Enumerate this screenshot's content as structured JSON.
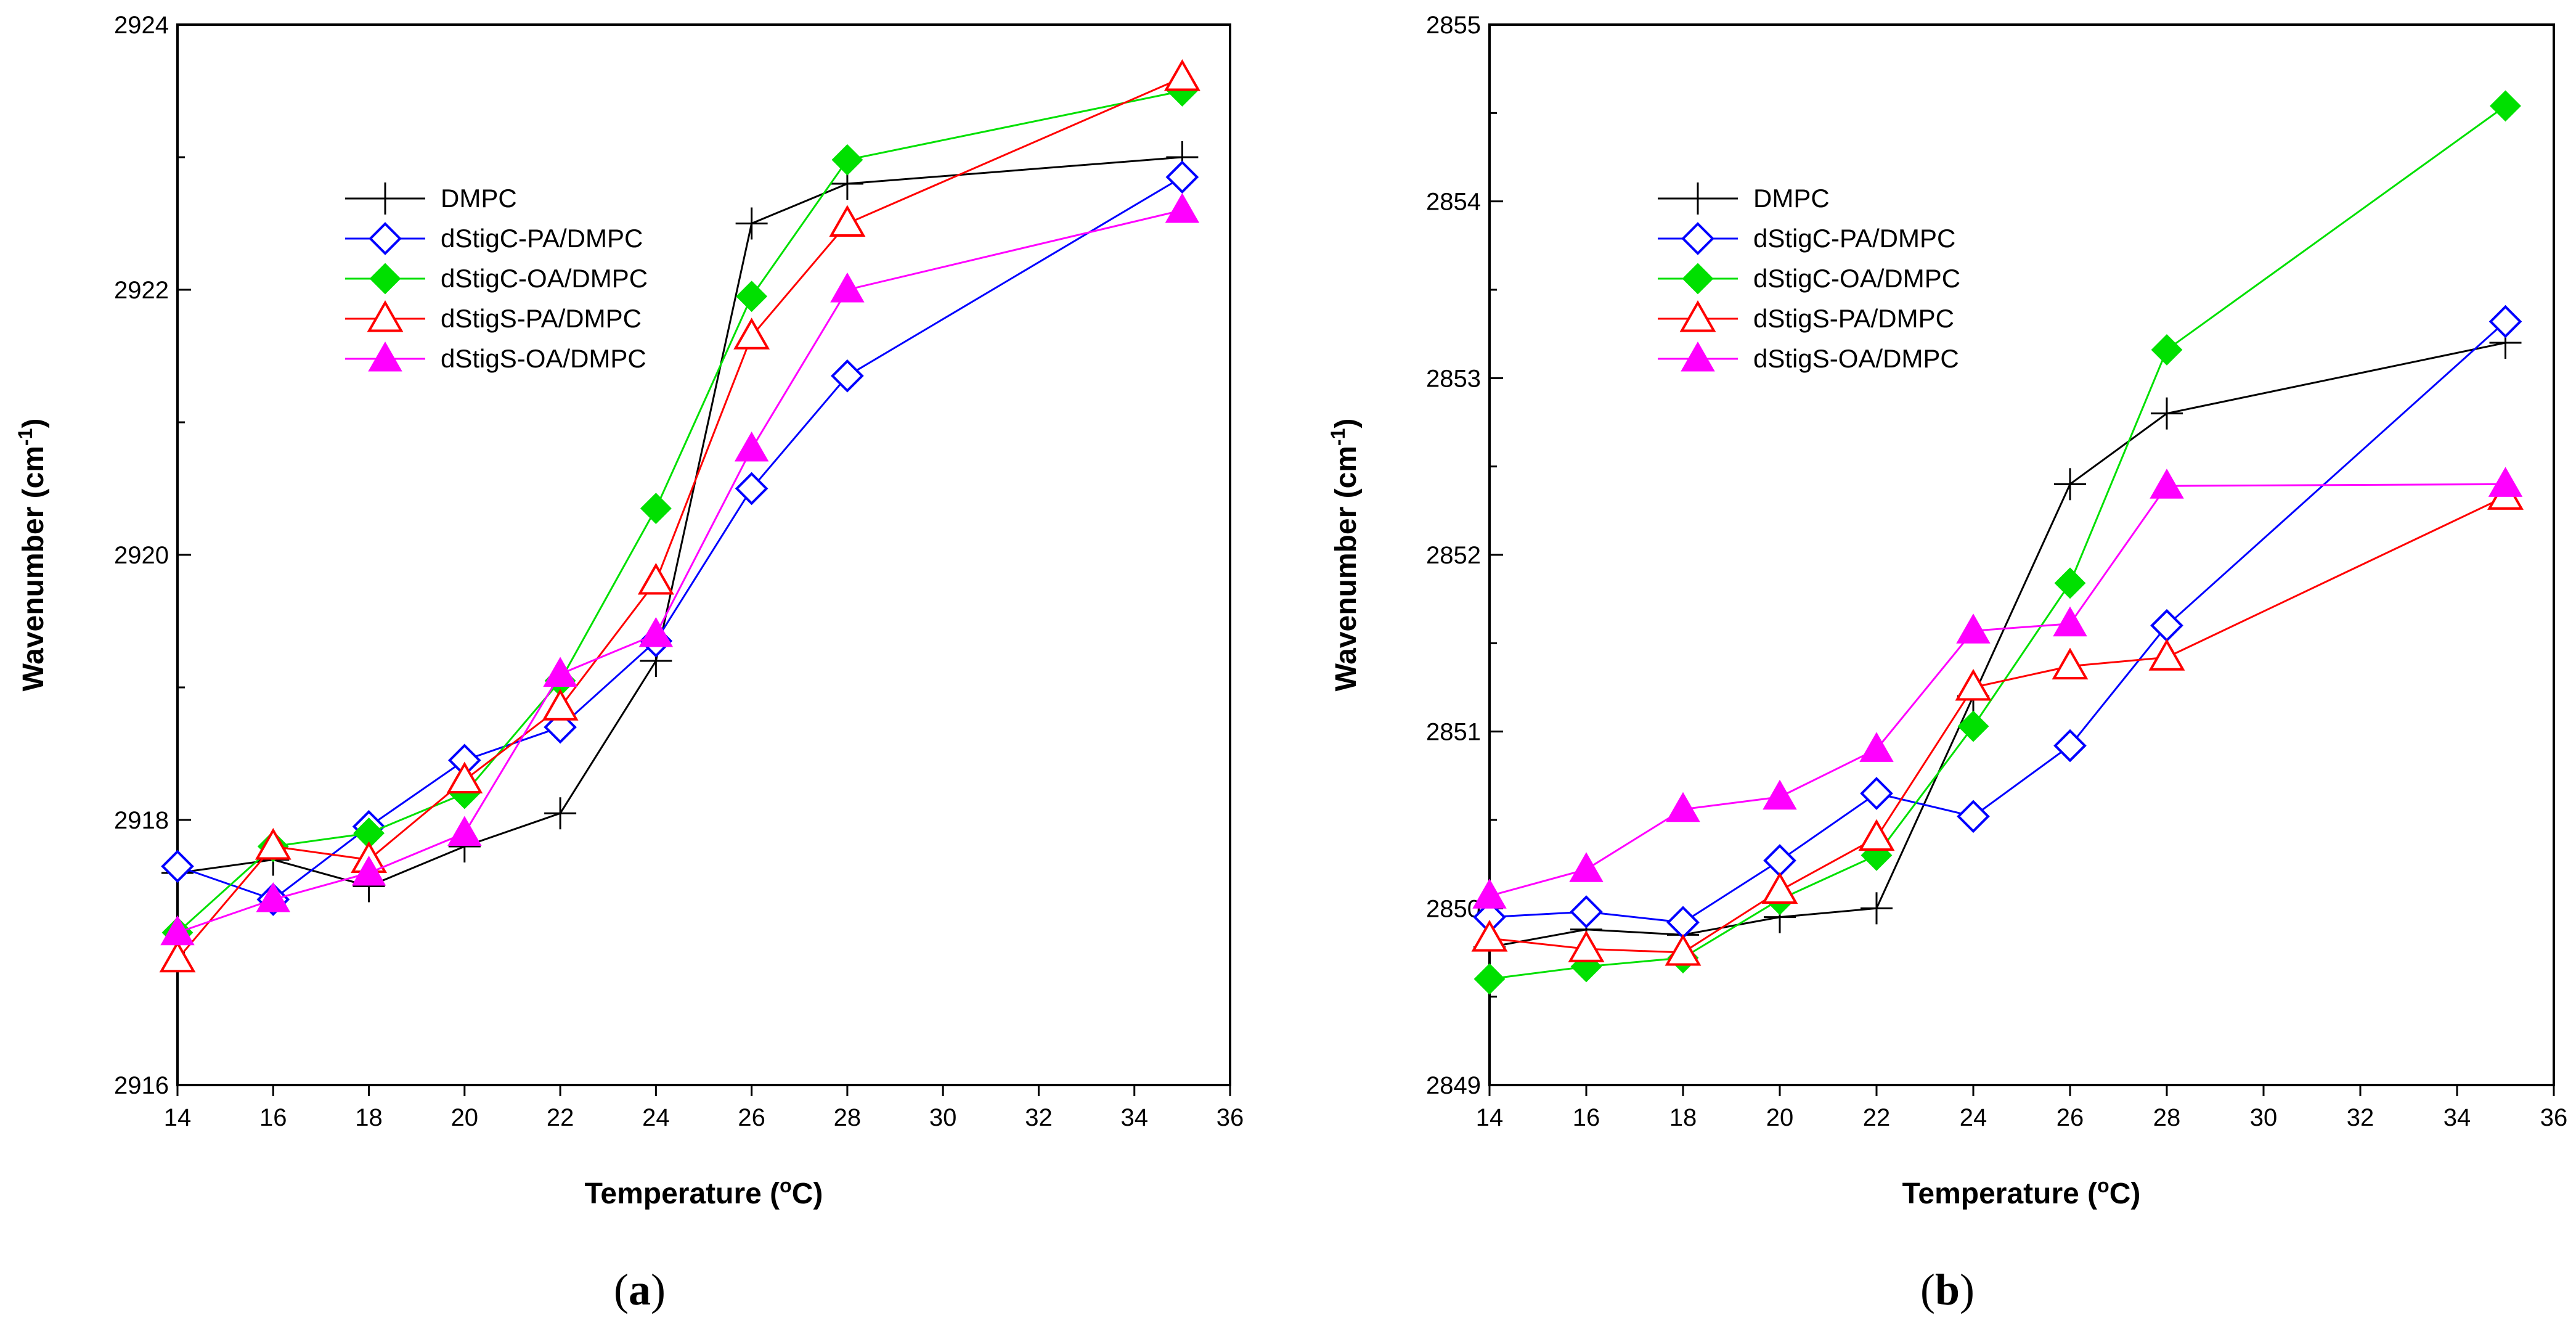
{
  "figure": {
    "panel_labels": [
      {
        "open": "(",
        "letter": "a",
        "close": ")"
      },
      {
        "open": "(",
        "letter": "b",
        "close": ")"
      }
    ]
  },
  "chart_data": [
    {
      "type": "line",
      "panel": "a",
      "title": "",
      "xlabel": "Temperature (°C)",
      "xlabel_parts": {
        "main": "Temperature (",
        "sup": "o",
        "unit": "C)"
      },
      "ylabel": "Wavenumber (cm-1)",
      "ylabel_parts": {
        "main": "Wavenumber  (cm",
        "sup": "-1",
        "close": ")"
      },
      "xlim": [
        14,
        36
      ],
      "ylim": [
        2916,
        2924
      ],
      "xticks": [
        14,
        16,
        18,
        20,
        22,
        24,
        26,
        28,
        30,
        32,
        34,
        36
      ],
      "yticks": [
        2916,
        2918,
        2920,
        2922,
        2924
      ],
      "ytick_labels": [
        "2916",
        "2918",
        "2920",
        "2922",
        "2924"
      ],
      "x": [
        14,
        16,
        18,
        20,
        22,
        24,
        26,
        28,
        35
      ],
      "legend_position": "upper-left",
      "series": [
        {
          "name": "DMPC",
          "color": "#000000",
          "marker": "plus",
          "values": [
            2917.6,
            2917.7,
            2917.5,
            2917.8,
            2918.05,
            2919.2,
            2922.5,
            2922.8,
            2923.0
          ]
        },
        {
          "name": "dStigC-PA/DMPC",
          "color": "#0000ff",
          "marker": "diamond-open",
          "values": [
            2917.65,
            2917.4,
            2917.95,
            2918.45,
            2918.7,
            2919.35,
            2920.5,
            2921.35,
            2922.85
          ]
        },
        {
          "name": "dStigC-OA/DMPC",
          "color": "#00e000",
          "marker": "diamond-filled",
          "values": [
            2917.15,
            2917.8,
            2917.9,
            2918.2,
            2919.05,
            2920.35,
            2921.95,
            2922.98,
            2923.5
          ]
        },
        {
          "name": "dStigS-PA/DMPC",
          "color": "#ff0000",
          "marker": "triangle-open",
          "values": [
            2916.95,
            2917.8,
            2917.7,
            2918.3,
            2918.85,
            2919.8,
            2921.65,
            2922.5,
            2923.6
          ]
        },
        {
          "name": "dStigS-OA/DMPC",
          "color": "#ff00ff",
          "marker": "triangle-filled",
          "values": [
            2917.15,
            2917.4,
            2917.6,
            2917.9,
            2919.1,
            2919.4,
            2920.8,
            2922.0,
            2922.6
          ]
        }
      ]
    },
    {
      "type": "line",
      "panel": "b",
      "title": "",
      "xlabel": "Temperature (°C)",
      "xlabel_parts": {
        "main": "Temperature (",
        "sup": "o",
        "unit": "C)"
      },
      "ylabel": "Wavenumber (cm-1)",
      "ylabel_parts": {
        "main": "Wavenumber  (cm",
        "sup": "-1",
        "close": ")"
      },
      "xlim": [
        14,
        36
      ],
      "ylim": [
        2849,
        2855
      ],
      "xticks": [
        14,
        16,
        18,
        20,
        22,
        24,
        26,
        28,
        30,
        32,
        34,
        36
      ],
      "yticks": [
        2849,
        2850,
        2851,
        2852,
        2853,
        2854,
        2855
      ],
      "ytick_labels": [
        "2849",
        "2850",
        "2851",
        "2852",
        "2853",
        "2854",
        "2855"
      ],
      "x": [
        14,
        16,
        18,
        20,
        22,
        24,
        26,
        28,
        35
      ],
      "legend_position": "upper-left",
      "series": [
        {
          "name": "DMPC",
          "color": "#000000",
          "marker": "plus",
          "values": [
            2849.78,
            2849.88,
            2849.85,
            2849.95,
            2850.0,
            2851.2,
            2852.4,
            2852.8,
            2853.2
          ]
        },
        {
          "name": "dStigC-PA/DMPC",
          "color": "#0000ff",
          "marker": "diamond-open",
          "values": [
            2849.95,
            2849.98,
            2849.92,
            2850.27,
            2850.65,
            2850.52,
            2850.92,
            2851.6,
            2853.32
          ]
        },
        {
          "name": "dStigC-OA/DMPC",
          "color": "#00e000",
          "marker": "diamond-filled",
          "values": [
            2849.6,
            2849.67,
            2849.72,
            2850.05,
            2850.3,
            2851.03,
            2851.84,
            2853.16,
            2854.54
          ]
        },
        {
          "name": "dStigS-PA/DMPC",
          "color": "#ff0000",
          "marker": "triangle-open",
          "values": [
            2849.83,
            2849.77,
            2849.75,
            2850.1,
            2850.4,
            2851.25,
            2851.37,
            2851.42,
            2852.33
          ]
        },
        {
          "name": "dStigS-OA/DMPC",
          "color": "#ff00ff",
          "marker": "triangle-filled",
          "values": [
            2850.07,
            2850.22,
            2850.56,
            2850.63,
            2850.9,
            2851.57,
            2851.61,
            2852.39,
            2852.4
          ]
        }
      ]
    }
  ]
}
